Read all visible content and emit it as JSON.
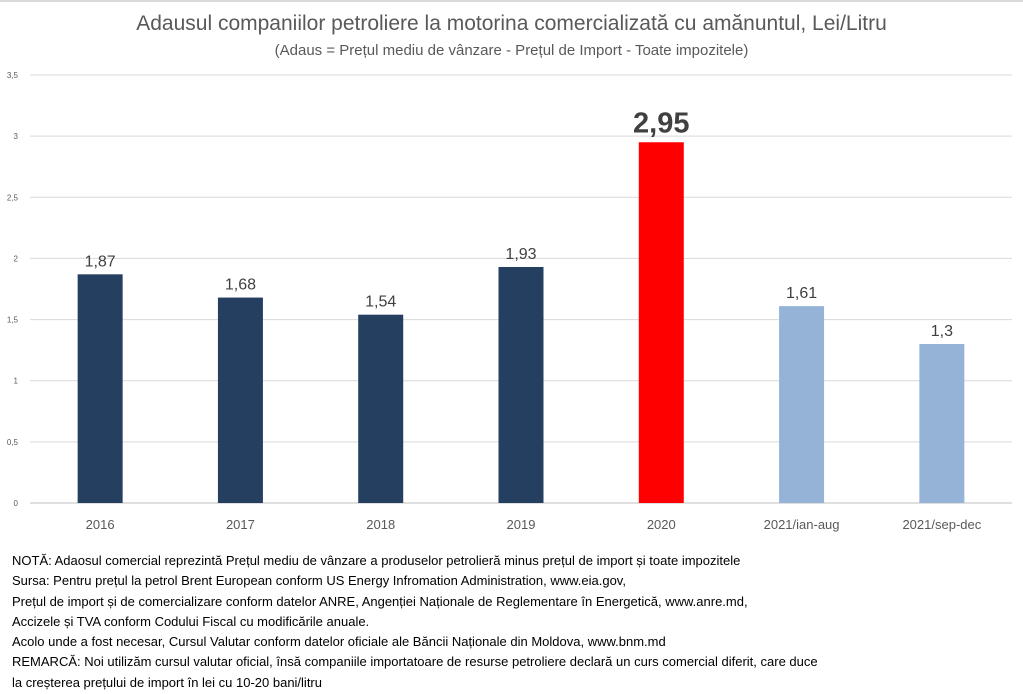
{
  "chart_data": {
    "type": "bar",
    "title": "Adausul companiilor petroliere la motorina comercializată cu amănuntul, Lei/Litru",
    "subtitle": "(Adaus = Prețul mediu de vânzare - Prețul de Import - Toate impozitele)",
    "categories": [
      "2016",
      "2017",
      "2018",
      "2019",
      "2020",
      "2021/ian-aug",
      "2021/sep-dec"
    ],
    "values": [
      1.87,
      1.68,
      1.54,
      1.93,
      2.95,
      1.61,
      1.3
    ],
    "labels": [
      "1,87",
      "1,68",
      "1,54",
      "1,93",
      "2,95",
      "1,61",
      "1,3"
    ],
    "colors": [
      "#243f60",
      "#243f60",
      "#243f60",
      "#243f60",
      "#ff0000",
      "#95b3d7",
      "#95b3d7"
    ],
    "ylim": [
      0,
      3.5
    ],
    "yticks": [
      0,
      0.5,
      1,
      1.5,
      2,
      2.5,
      3,
      3.5
    ],
    "ytick_labels": [
      "0",
      "0,5",
      "1",
      "1,5",
      "2",
      "2,5",
      "3",
      "3,5"
    ],
    "grid": true,
    "xlabel": "",
    "ylabel": ""
  },
  "notes": [
    "NOTĂ: Adaosul comercial reprezintă Prețul mediu de vânzare a produselor petrolieră minus prețul de import și toate impozitele",
    "Sursa: Pentru prețul la petrol Brent European conform US Energy Infromation Administration, www.eia.gov,",
    "Prețul de import și de comercializare conform datelor ANRE, Angenției Naționale de Reglementare în Energetică, www.anre.md,",
    "Accizele și TVA conform Codului Fiscal cu modificările anuale.",
    "Acolo unde a fost necesar, Cursul Valutar conform datelor oficiale ale Băncii Naționale din Moldova, www.bnm.md",
    "REMARCĂ: Noi utilizăm cursul valutar oficial, însă companiile importatoare de resurse petroliere declară un curs comercial diferit, care duce",
    "la creșterea prețului de import în lei cu 10-20 bani/litru"
  ]
}
